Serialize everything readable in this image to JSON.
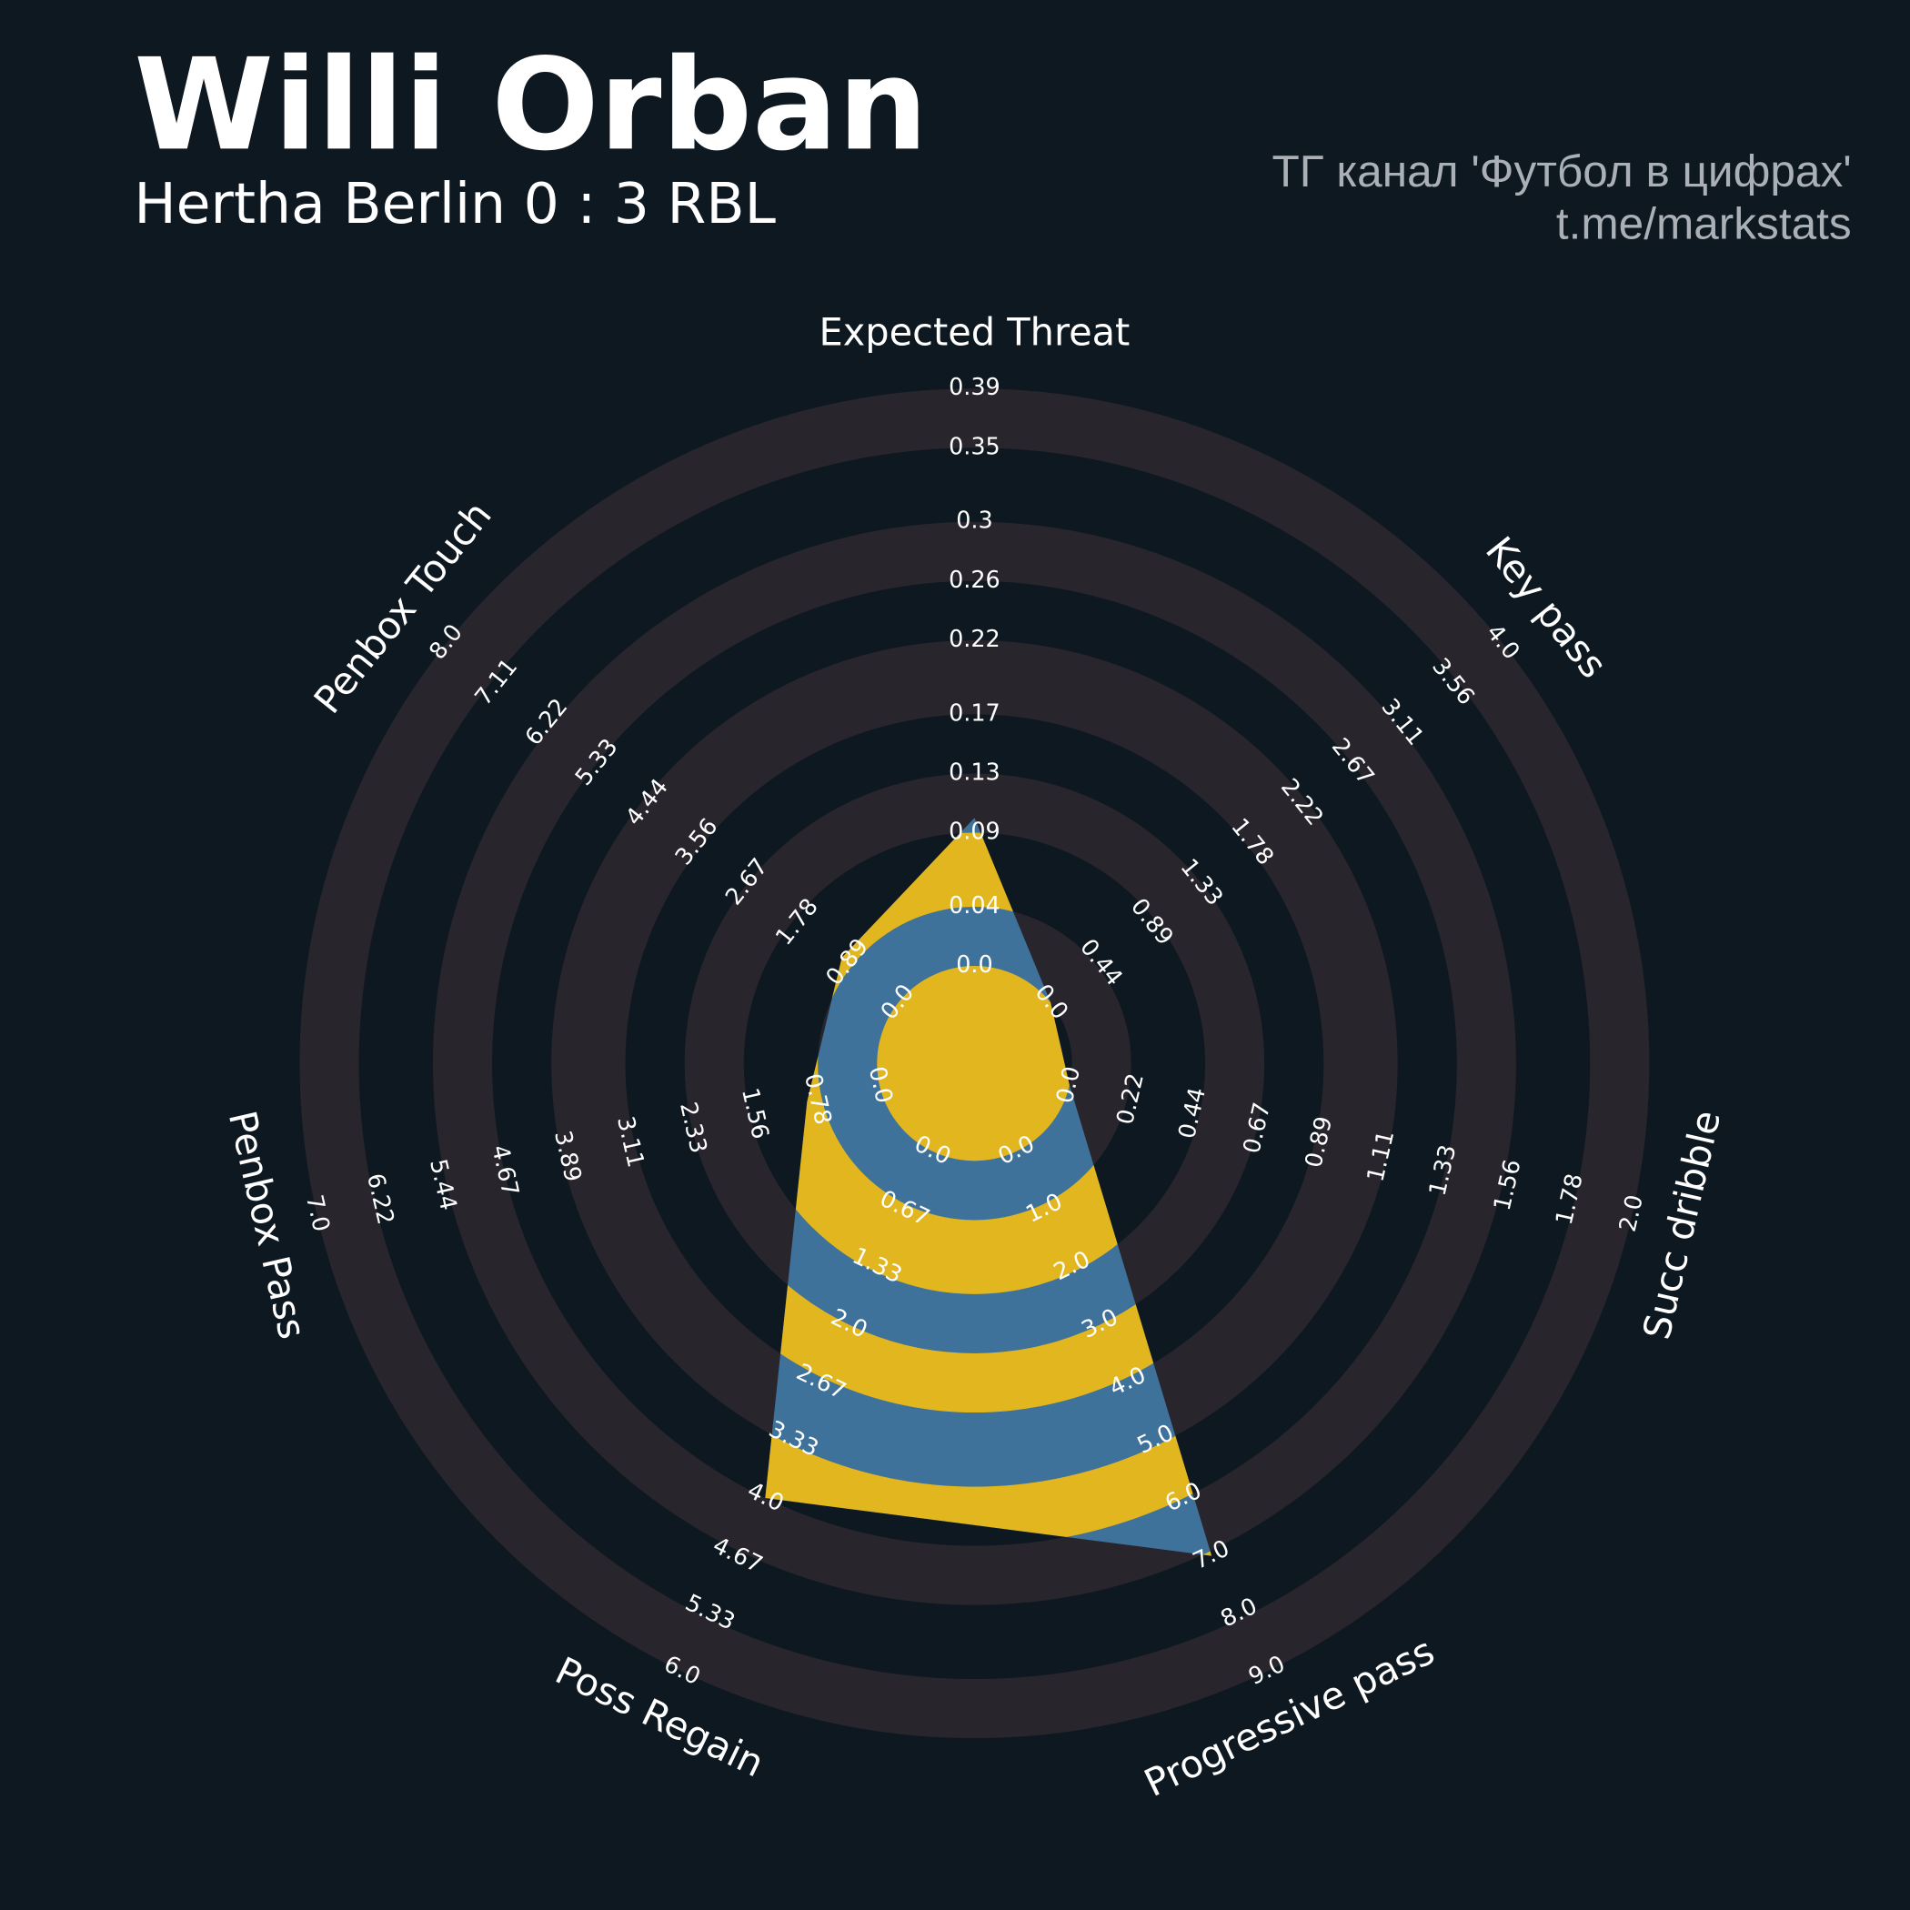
{
  "chart_data": {
    "type": "radar",
    "title": "Willi Orban",
    "subtitle": "Hertha Berlin 0 : 3 RBL",
    "credits": [
      "ТГ канал 'Футбол в цифрах'",
      "t.me/markstats"
    ],
    "color": "#3f729b",
    "ring_color": "#e2b61e",
    "axes": [
      {
        "name": "Expected Threat",
        "lim": [
          0,
          0.39
        ],
        "ticks": [
          {
            "value": 0,
            "label": "0.0"
          },
          0.04,
          0.09,
          0.13,
          0.17,
          0.22,
          0.26,
          0.3,
          0.35,
          0.39
        ]
      },
      {
        "name": "Key pass",
        "lim": [
          0,
          4
        ],
        "ticks": [
          {
            "value": 0,
            "label": "0.0"
          },
          0.44,
          0.89,
          1.33,
          1.78,
          2.22,
          2.67,
          3.11,
          3.56,
          {
            "value": 4,
            "label": "4.0"
          }
        ]
      },
      {
        "name": "Succ dribble",
        "lim": [
          0,
          2
        ],
        "ticks": [
          {
            "value": 0,
            "label": "0.0"
          },
          0.22,
          0.44,
          0.67,
          0.89,
          1.11,
          1.33,
          1.56,
          1.78,
          {
            "value": 2,
            "label": "2.0"
          }
        ]
      },
      {
        "name": "Progressive pass",
        "lim": [
          0,
          9
        ],
        "ticks": [
          {
            "value": 0,
            "label": "0.0"
          },
          {
            "value": 1,
            "label": "1.0"
          },
          {
            "value": 2,
            "label": "2.0"
          },
          {
            "value": 3,
            "label": "3.0"
          },
          {
            "value": 4,
            "label": "4.0"
          },
          {
            "value": 5,
            "label": "5.0"
          },
          {
            "value": 6,
            "label": "6.0"
          },
          {
            "value": 7,
            "label": "7.0"
          },
          {
            "value": 8,
            "label": "8.0"
          },
          {
            "value": 9,
            "label": "9.0"
          }
        ]
      },
      {
        "name": "Poss Regain",
        "lim": [
          0,
          6
        ],
        "ticks": [
          {
            "value": 0,
            "label": "0.0"
          },
          0.67,
          1.33,
          {
            "value": 2,
            "label": "2.0"
          },
          2.67,
          3.33,
          {
            "value": 4,
            "label": "4.0"
          },
          4.67,
          5.33,
          {
            "value": 6,
            "label": "6.0"
          }
        ]
      },
      {
        "name": "Penbox Pass",
        "lim": [
          0,
          7
        ],
        "ticks": [
          {
            "value": 0,
            "label": "0.0"
          },
          0.78,
          1.56,
          2.33,
          3.11,
          3.89,
          4.67,
          5.44,
          6.22,
          {
            "value": 7,
            "label": "7.0"
          }
        ]
      },
      {
        "name": "Penbox Touch",
        "lim": [
          0,
          8
        ],
        "ticks": [
          {
            "value": 0,
            "label": "0.0"
          },
          0.89,
          1.78,
          2.67,
          3.56,
          4.44,
          5.33,
          6.22,
          7.11,
          {
            "value": 8,
            "label": "8.0"
          }
        ]
      }
    ],
    "values": [
      0.1,
      0,
      0,
      7,
      4,
      0.9,
      1
    ]
  }
}
